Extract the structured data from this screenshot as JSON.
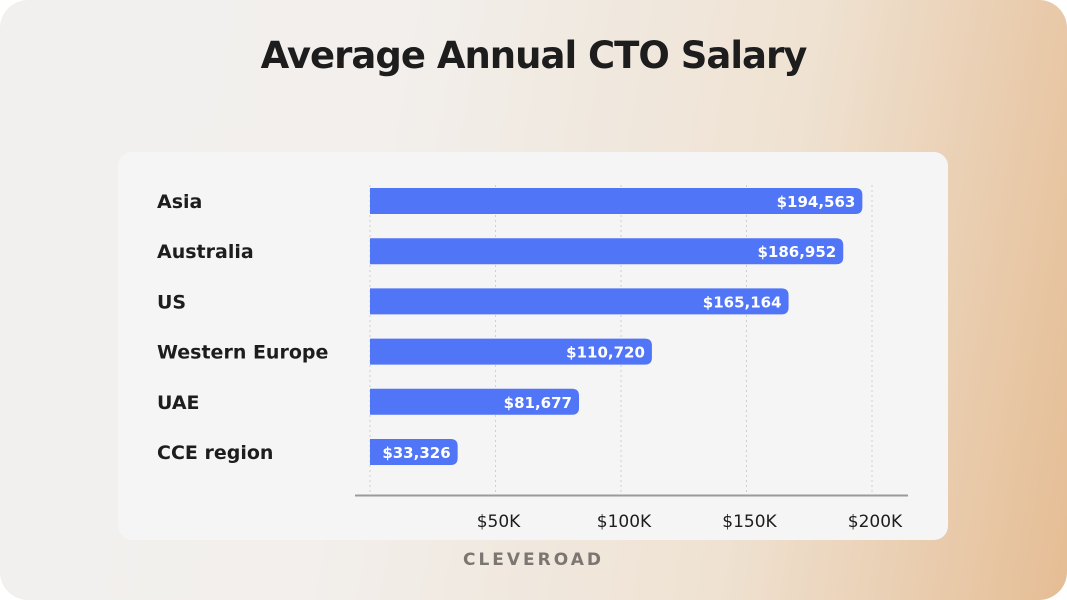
{
  "chart_data": {
    "type": "bar",
    "orientation": "horizontal",
    "title": "Average Annual CTO Salary",
    "categories": [
      "Asia",
      "Australia",
      "US",
      "Western Europe",
      "UAE",
      "CCE region"
    ],
    "values": [
      194563,
      186952,
      165164,
      110720,
      81677,
      33326
    ],
    "data_labels": [
      "$194,563",
      "$186,952",
      "$165,164",
      "$110,720",
      "$81,677",
      "$33,326"
    ],
    "xlim": [
      0,
      200000
    ],
    "xticks": [
      50000,
      100000,
      150000,
      200000
    ],
    "xtick_labels": [
      "$50K",
      "$100K",
      "$150K",
      "$200K"
    ],
    "grid": "vertical dotted",
    "bar_color": "#5075f7"
  },
  "brand": "CLEVEROAD"
}
